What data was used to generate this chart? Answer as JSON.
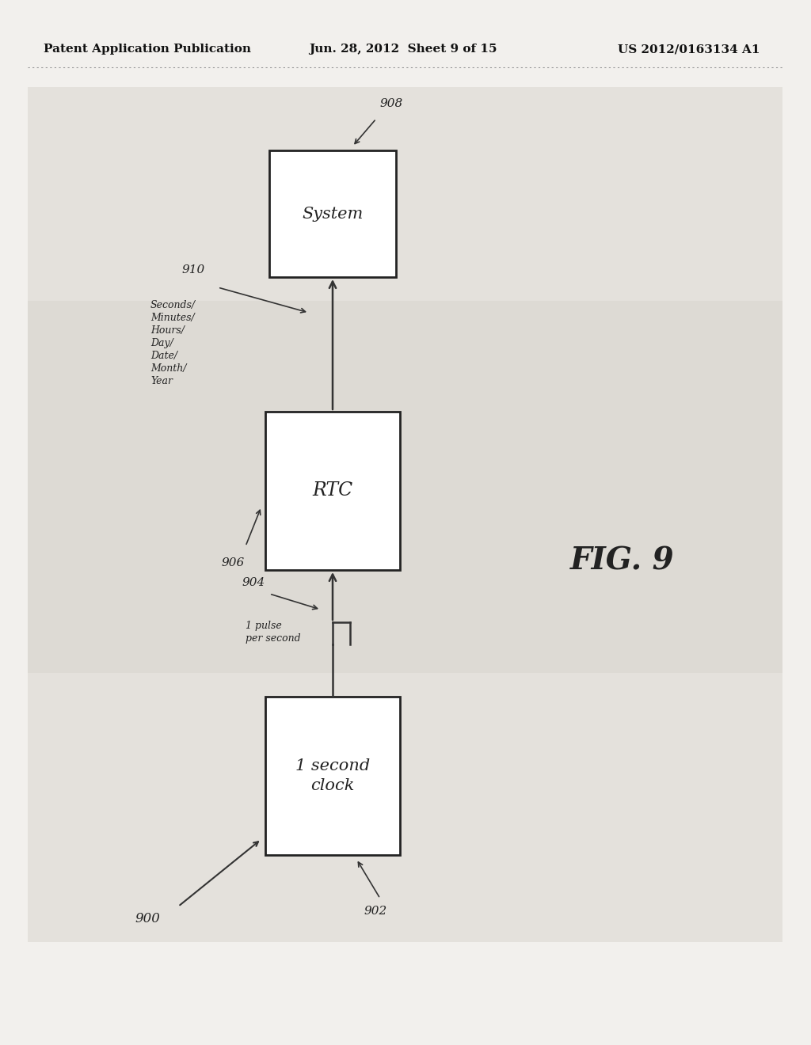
{
  "bg_color": "#f2f0ed",
  "header_text": "Patent Application Publication",
  "header_date": "Jun. 28, 2012  Sheet 9 of 15",
  "header_patent": "US 2012/0163134 A1",
  "fig_label": "FIG. 9",
  "box1_label": "1 second\nclock",
  "box1_ref": "902",
  "box2_label": "RTC",
  "box2_ref": "906",
  "box3_label": "System",
  "box3_ref": "908",
  "arrow1_label": "1 pulse\nper second",
  "arrow1_ref": "904",
  "arrow2_label": "Seconds/\nMinutes/\nHours/\nDay/\nDate/\nMonth/\nYear",
  "arrow2_ref": "910",
  "system_ref": "900",
  "box_color": "#ffffff",
  "box_edge_color": "#222222",
  "arrow_color": "#333333",
  "text_color": "#222222",
  "header_color": "#111111",
  "band_color_outer": "#e4e1dc",
  "band_color_inner": "#dddad4"
}
